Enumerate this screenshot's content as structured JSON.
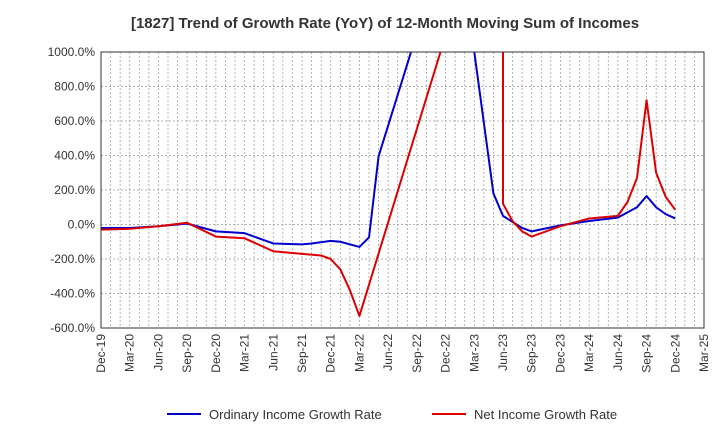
{
  "chart_data": {
    "type": "line",
    "title": "[1827]  Trend of Growth Rate (YoY) of 12-Month Moving Sum of Incomes",
    "xlabel": "",
    "ylabel": "",
    "ylim": [
      -600,
      1000
    ],
    "y_ticks": [
      "1000.0%",
      "800.0%",
      "600.0%",
      "400.0%",
      "200.0%",
      "0.0%",
      "-200.0%",
      "-400.0%",
      "-600.0%"
    ],
    "x_ticks": [
      "Dec-19",
      "Mar-20",
      "Jun-20",
      "Sep-20",
      "Dec-20",
      "Mar-21",
      "Jun-21",
      "Sep-21",
      "Dec-21",
      "Mar-22",
      "Jun-22",
      "Sep-22",
      "Dec-22",
      "Mar-23",
      "Jun-23",
      "Sep-23",
      "Dec-23",
      "Mar-24",
      "Jun-24",
      "Sep-24",
      "Dec-24",
      "Mar-25"
    ],
    "grid": true,
    "legend_position": "bottom",
    "colors": {
      "ordinary": "#0000cc",
      "net": "#dd0000",
      "grid": "#999999"
    },
    "series": [
      {
        "name": "Ordinary Income Growth Rate",
        "color": "#0000cc",
        "points": [
          [
            "Dec-19",
            -20
          ],
          [
            "Mar-20",
            -20
          ],
          [
            "Jun-20",
            -10
          ],
          [
            "Sep-20",
            5
          ],
          [
            "Dec-20",
            -40
          ],
          [
            "Mar-21",
            -50
          ],
          [
            "May-21",
            -90
          ],
          [
            "Jun-21",
            -110
          ],
          [
            "Sep-21",
            -115
          ],
          [
            "Oct-21",
            -110
          ],
          [
            "Dec-21",
            -95
          ],
          [
            "Jan-22",
            -100
          ],
          [
            "Mar-22",
            -130
          ],
          [
            "Apr-22",
            -75
          ],
          [
            "May-22",
            395
          ],
          [
            "Feb-23",
            2000
          ],
          [
            "Mar-23",
            1000
          ],
          [
            "May-23",
            180
          ],
          [
            "Jun-23",
            50
          ],
          [
            "Jul-23",
            15
          ],
          [
            "Aug-23",
            -20
          ],
          [
            "Sep-23",
            -40
          ],
          [
            "Dec-23",
            -5
          ],
          [
            "Mar-24",
            20
          ],
          [
            "Jun-24",
            40
          ],
          [
            "Aug-24",
            100
          ],
          [
            "Sep-24",
            165
          ],
          [
            "Oct-24",
            100
          ],
          [
            "Nov-24",
            60
          ],
          [
            "Dec-24",
            35
          ]
        ]
      },
      {
        "name": "Net Income Growth Rate",
        "color": "#dd0000",
        "points": [
          [
            "Dec-19",
            -30
          ],
          [
            "Mar-20",
            -25
          ],
          [
            "Jun-20",
            -10
          ],
          [
            "Sep-20",
            10
          ],
          [
            "Dec-20",
            -70
          ],
          [
            "Mar-21",
            -80
          ],
          [
            "Jun-21",
            -155
          ],
          [
            "Sep-21",
            -170
          ],
          [
            "Nov-21",
            -180
          ],
          [
            "Dec-21",
            -200
          ],
          [
            "Jan-22",
            -260
          ],
          [
            "Feb-22",
            -380
          ],
          [
            "Mar-22",
            -530
          ],
          [
            "May-23",
            2000
          ],
          [
            "Jun-23",
            1000
          ],
          [
            "Jun-23",
            120
          ],
          [
            "Jul-23",
            20
          ],
          [
            "Aug-23",
            -40
          ],
          [
            "Sep-23",
            -70
          ],
          [
            "Dec-23",
            -10
          ],
          [
            "Mar-24",
            35
          ],
          [
            "Jun-24",
            50
          ],
          [
            "Jul-24",
            130
          ],
          [
            "Aug-24",
            270
          ],
          [
            "Sep-24",
            720
          ],
          [
            "Oct-24",
            300
          ],
          [
            "Nov-24",
            160
          ],
          [
            "Dec-24",
            85
          ]
        ]
      }
    ]
  }
}
